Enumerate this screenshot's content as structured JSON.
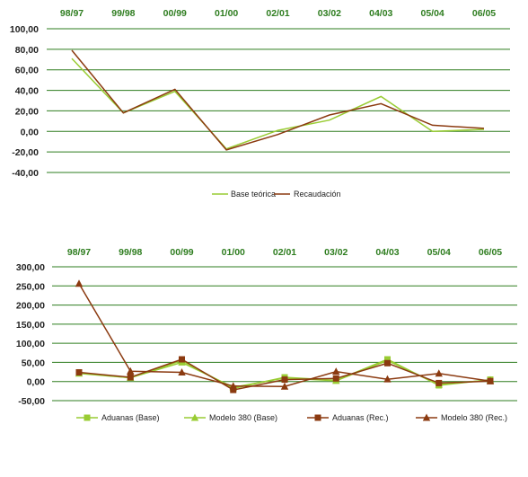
{
  "colors": {
    "grid": "#2e7d1f",
    "category_label": "#2e7d1f",
    "lime": "#99cc33",
    "brown": "#8b3a10"
  },
  "chart_data": [
    {
      "type": "line",
      "categories": [
        "98/97",
        "99/98",
        "00/99",
        "01/00",
        "02/01",
        "03/02",
        "04/03",
        "05/04",
        "06/05"
      ],
      "ylim": [
        -40,
        100
      ],
      "yticks": [
        100,
        80,
        60,
        40,
        20,
        0,
        -20,
        -40
      ],
      "ytick_labels": [
        "100,00",
        "80,00",
        "60,00",
        "40,00",
        "20,00",
        "0,00",
        "-20,00",
        "-40,00"
      ],
      "grid": true,
      "legend": "bottom-center",
      "series": [
        {
          "name": "Base teórica",
          "color": "#99cc33",
          "marker": "none",
          "values": [
            71,
            18,
            39,
            -17,
            1,
            11,
            34,
            0,
            2
          ]
        },
        {
          "name": "Recaudación",
          "color": "#8b3a10",
          "marker": "none",
          "values": [
            79,
            18,
            41,
            -18,
            -3,
            16,
            27,
            6,
            3
          ]
        }
      ]
    },
    {
      "type": "line",
      "categories": [
        "98/97",
        "99/98",
        "00/99",
        "01/00",
        "02/01",
        "03/02",
        "04/03",
        "05/04",
        "06/05"
      ],
      "ylim": [
        -50,
        300
      ],
      "yticks": [
        300,
        250,
        200,
        150,
        100,
        50,
        0,
        -50
      ],
      "ytick_labels": [
        "300,00",
        "250,00",
        "200,00",
        "150,00",
        "100,00",
        "50,00",
        "0,00",
        "-50,00"
      ],
      "grid": true,
      "legend": "bottom",
      "series": [
        {
          "name": "Aduanas (Base)",
          "color": "#99cc33",
          "marker": "square",
          "values": [
            22,
            10,
            55,
            -18,
            11,
            3,
            58,
            -10,
            5
          ]
        },
        {
          "name": "Modelo 380 (Base)",
          "color": "#99cc33",
          "marker": "triangle",
          "values": [
            21,
            10,
            50,
            -15,
            9,
            2,
            55,
            -8,
            4
          ]
        },
        {
          "name": "Aduanas (Rec.)",
          "color": "#8b3a10",
          "marker": "square",
          "values": [
            24,
            11,
            58,
            -22,
            5,
            8,
            48,
            -4,
            1
          ]
        },
        {
          "name": "Modelo 380 (Rec.)",
          "color": "#8b3a10",
          "marker": "triangle",
          "values": [
            256,
            27,
            24,
            -12,
            -13,
            26,
            6,
            21,
            1
          ]
        }
      ]
    }
  ]
}
